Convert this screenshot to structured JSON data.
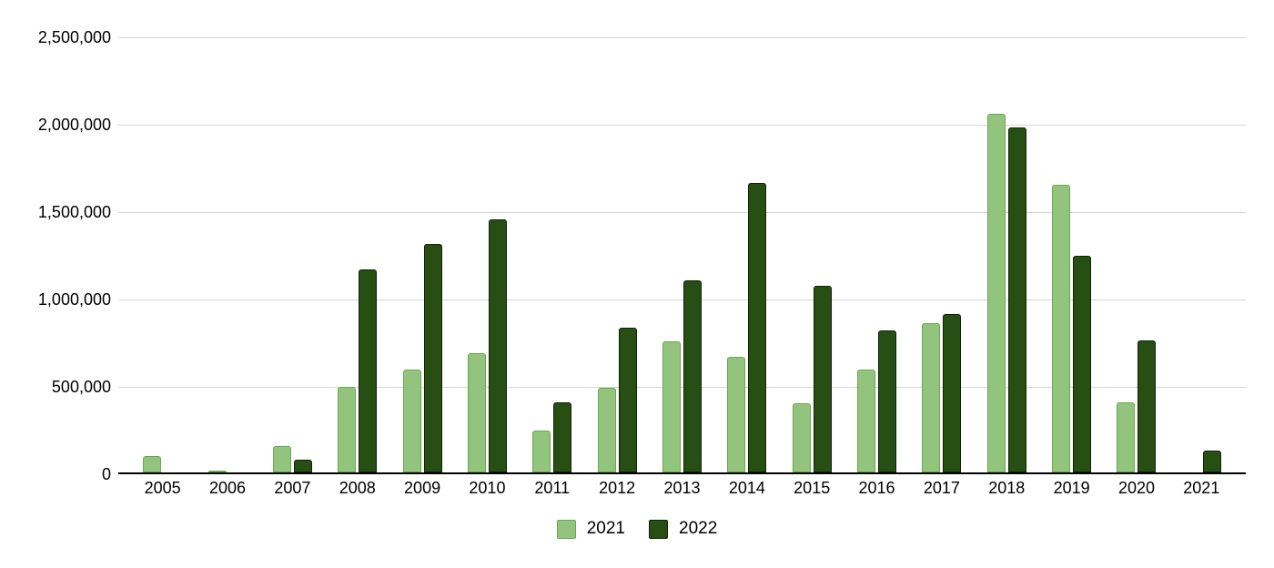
{
  "chart_style": {
    "background": "#ffffff",
    "grid_color": "#d6d6d6",
    "axis_line_color": "#000000",
    "text_color": "#000000"
  },
  "chart_data": {
    "type": "bar",
    "title": "",
    "xlabel": "",
    "ylabel": "",
    "categories": [
      "2005",
      "2006",
      "2007",
      "2008",
      "2009",
      "2010",
      "2011",
      "2012",
      "2013",
      "2014",
      "2015",
      "2016",
      "2017",
      "2018",
      "2019",
      "2020",
      "2021"
    ],
    "series": [
      {
        "name": "2021",
        "color": "#93c47d",
        "border_color": "#6aa84f",
        "values": [
          95000,
          12000,
          150000,
          490000,
          590000,
          685000,
          240000,
          485000,
          755000,
          665000,
          395000,
          590000,
          860000,
          2060000,
          1655000,
          405000,
          0
        ]
      },
      {
        "name": "2022",
        "color": "#274e13",
        "border_color": "#102306",
        "values": [
          0,
          0,
          75000,
          1165000,
          1315000,
          1455000,
          405000,
          830000,
          1105000,
          1665000,
          1070000,
          815000,
          910000,
          1980000,
          1245000,
          760000,
          125000
        ]
      }
    ],
    "ylim": [
      0,
      2500000
    ],
    "ytick_interval": 500000,
    "yticks": [
      {
        "value": 0,
        "label": "0"
      },
      {
        "value": 500000,
        "label": "500,000"
      },
      {
        "value": 1000000,
        "label": "1,000,000"
      },
      {
        "value": 1500000,
        "label": "1,500,000"
      },
      {
        "value": 2000000,
        "label": "2,000,000"
      },
      {
        "value": 2500000,
        "label": "2,500,000"
      }
    ],
    "grid": true,
    "legend_position": "bottom-center"
  }
}
